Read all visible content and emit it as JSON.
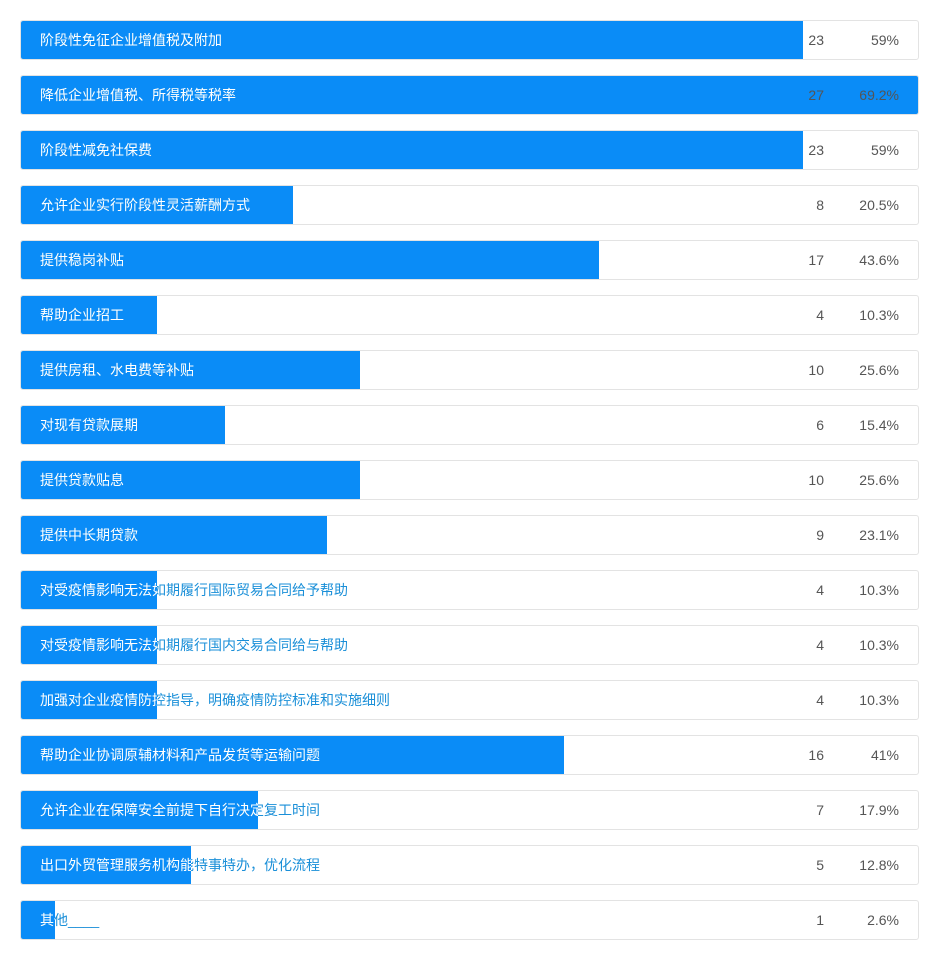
{
  "chart_data": {
    "type": "bar",
    "orientation": "horizontal",
    "colors": {
      "bar": "#0a8cf7",
      "label_on_bar": "#ffffff",
      "label_off_bar": "#1a8fd8"
    },
    "categories": [
      "阶段性免征企业增值税及附加",
      "降低企业增值税、所得税等税率",
      "阶段性减免社保费",
      "允许企业实行阶段性灵活薪酬方式",
      "提供稳岗补贴",
      "帮助企业招工",
      "提供房租、水电费等补贴",
      "对现有贷款展期",
      "提供贷款贴息",
      "提供中长期贷款",
      "对受疫情影响无法如期履行国际贸易合同给予帮助",
      "对受疫情影响无法如期履行国内交易合同给与帮助",
      "加强对企业疫情防控指导，明确疫情防控标准和实施细则",
      "帮助企业协调原辅材料和产品发货等运输问题",
      "允许企业在保障安全前提下自行决定复工时间",
      "出口外贸管理服务机构能特事特办，优化流程",
      "其他____"
    ],
    "counts": [
      23,
      27,
      23,
      8,
      17,
      4,
      10,
      6,
      10,
      9,
      4,
      4,
      4,
      16,
      7,
      5,
      1
    ],
    "percents": [
      59,
      69.2,
      59,
      20.5,
      43.6,
      10.3,
      25.6,
      15.4,
      25.6,
      23.1,
      10.3,
      10.3,
      10.3,
      41,
      17.9,
      12.8,
      2.6
    ],
    "percent_labels": [
      "59%",
      "69.2%",
      "59%",
      "20.5%",
      "43.6%",
      "10.3%",
      "25.6%",
      "15.4%",
      "25.6%",
      "23.1%",
      "10.3%",
      "10.3%",
      "10.3%",
      "41%",
      "17.9%",
      "12.8%",
      "2.6%"
    ],
    "xlim": [
      0,
      100
    ]
  }
}
